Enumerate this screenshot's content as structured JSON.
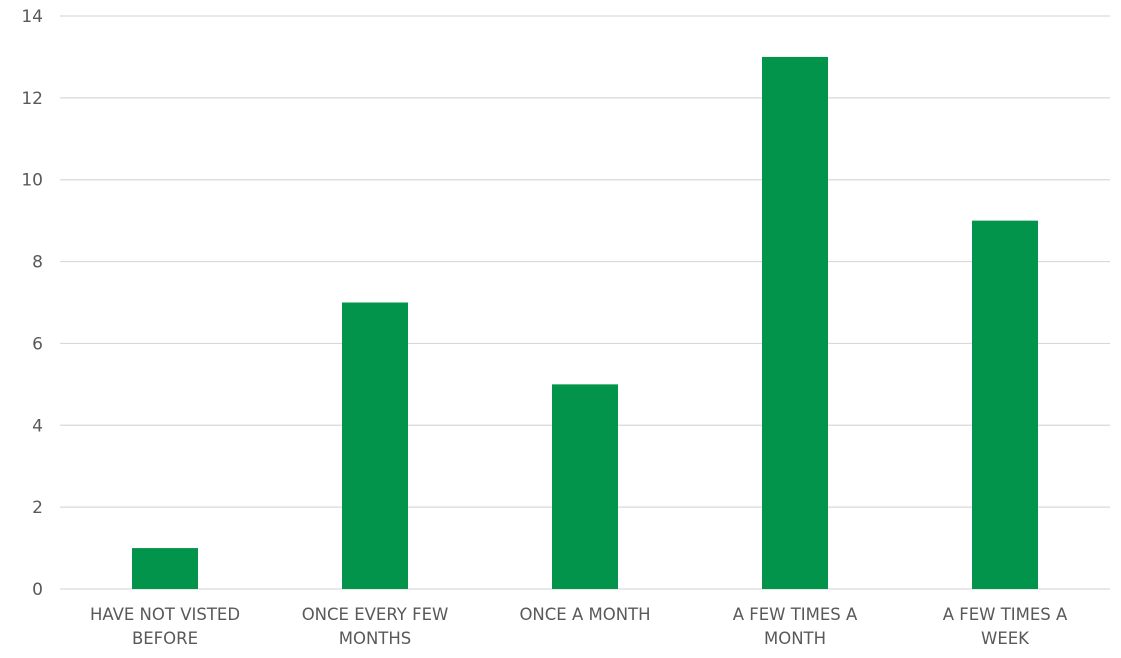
{
  "chart_data": {
    "type": "bar",
    "categories": [
      [
        "HAVE NOT VISTED",
        "BEFORE"
      ],
      [
        "ONCE EVERY FEW",
        "MONTHS"
      ],
      [
        "ONCE A MONTH"
      ],
      [
        "A FEW TIMES A",
        "MONTH"
      ],
      [
        "A FEW TIMES A",
        "WEEK"
      ]
    ],
    "values": [
      1,
      7,
      5,
      13,
      9
    ],
    "title": "",
    "xlabel": "",
    "ylabel": "",
    "ylim": [
      0,
      14
    ],
    "yticks": [
      0,
      2,
      4,
      6,
      8,
      10,
      12,
      14
    ],
    "grid": true,
    "legend": "none",
    "bar_color": "#03944b"
  }
}
